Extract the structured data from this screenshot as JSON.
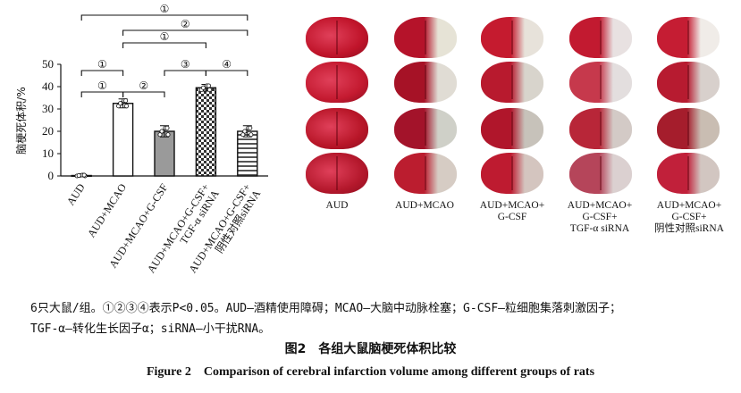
{
  "chart_data": {
    "type": "bar",
    "ylabel": "脑梗死体积/%",
    "ylim": [
      0,
      50
    ],
    "yticks": [
      0,
      10,
      20,
      30,
      40,
      50
    ],
    "categories": [
      "AUD",
      "AUD+MCAO",
      "AUD+MCAO+G-CSF",
      "AUD+MCAO+G-CSF+ TGF-α siRNA",
      "AUD+MCAO+G-CSF+ 阴性对照siRNA"
    ],
    "category_lines": [
      [
        "AUD"
      ],
      [
        "AUD+MCAO"
      ],
      [
        "AUD+MCAO+G-CSF"
      ],
      [
        "AUD+MCAO+G-CSF+",
        "TGF-α siRNA"
      ],
      [
        "AUD+MCAO+G-CSF+",
        "阴性对照siRNA"
      ]
    ],
    "values": [
      0.2,
      32.5,
      20.0,
      39.5,
      20.0
    ],
    "errors": [
      0.3,
      2.0,
      2.5,
      1.5,
      2.5
    ],
    "bar_patterns": [
      "white",
      "white",
      "gray",
      "checker",
      "hatch"
    ],
    "significance": [
      {
        "groups": [
          1,
          2
        ],
        "label": "①"
      },
      {
        "groups": [
          2,
          3
        ],
        "label": "②"
      },
      {
        "groups": [
          1,
          2
        ],
        "label": "①"
      },
      {
        "groups": [
          3,
          4
        ],
        "label": "③"
      },
      {
        "groups": [
          4,
          5
        ],
        "label": "④"
      },
      {
        "groups": [
          2,
          4
        ],
        "label": "①"
      },
      {
        "groups": [
          2,
          5
        ],
        "label": "②"
      },
      {
        "groups": [
          1,
          5
        ],
        "label": "①"
      }
    ]
  },
  "photo_panel": {
    "columns": [
      "AUD",
      "AUD+MCAO",
      "AUD+MCAO+\nG-CSF",
      "AUD+MCAO+\nG-CSF+\nTGF-α siRNA",
      "AUD+MCAO+\nG-CSF+\n阴性对照siRNA"
    ],
    "tile_colors": [
      [
        "#c0142a",
        "#b5132a",
        "#c51b2f",
        "#c21a30",
        "#c51d33"
      ],
      [
        "#c41a30",
        "#a61226",
        "#b81a2e",
        "#c6394c",
        "#b71b30"
      ],
      [
        "#b81628",
        "#a3132a",
        "#b0162b",
        "#b82638",
        "#a51d2c"
      ],
      [
        "#b4182c",
        "#bb1d2f",
        "#be1b30",
        "#b5455a",
        "#c1203a"
      ]
    ],
    "infarct_colors": [
      [
        "#c0142a",
        "#e6e3d6",
        "#e7e2da",
        "#e8e1e1",
        "#f0ece8"
      ],
      [
        "#c41a30",
        "#e0dcd4",
        "#d8d4cc",
        "#e3dede",
        "#d8d0cc"
      ],
      [
        "#b81628",
        "#cfd0c8",
        "#c7c2ba",
        "#d3cac6",
        "#c9bdb2"
      ],
      [
        "#b4182c",
        "#d6ccc4",
        "#d4c5bf",
        "#dbd0d0",
        "#d2c6c1"
      ]
    ]
  },
  "notes": {
    "line1": "6只大鼠/组。①②③④表示P<0.05。AUD—酒精使用障碍；MCAO—大脑中动脉栓塞；G-CSF—粒细胞集落刺激因子；",
    "line2": "TGF-α—转化生长因子α；siRNA—小干扰RNA。"
  },
  "caption": {
    "cn": "图2　各组大鼠脑梗死体积比较",
    "en": "Figure 2　Comparison of cerebral infarction volume among different groups of rats"
  }
}
